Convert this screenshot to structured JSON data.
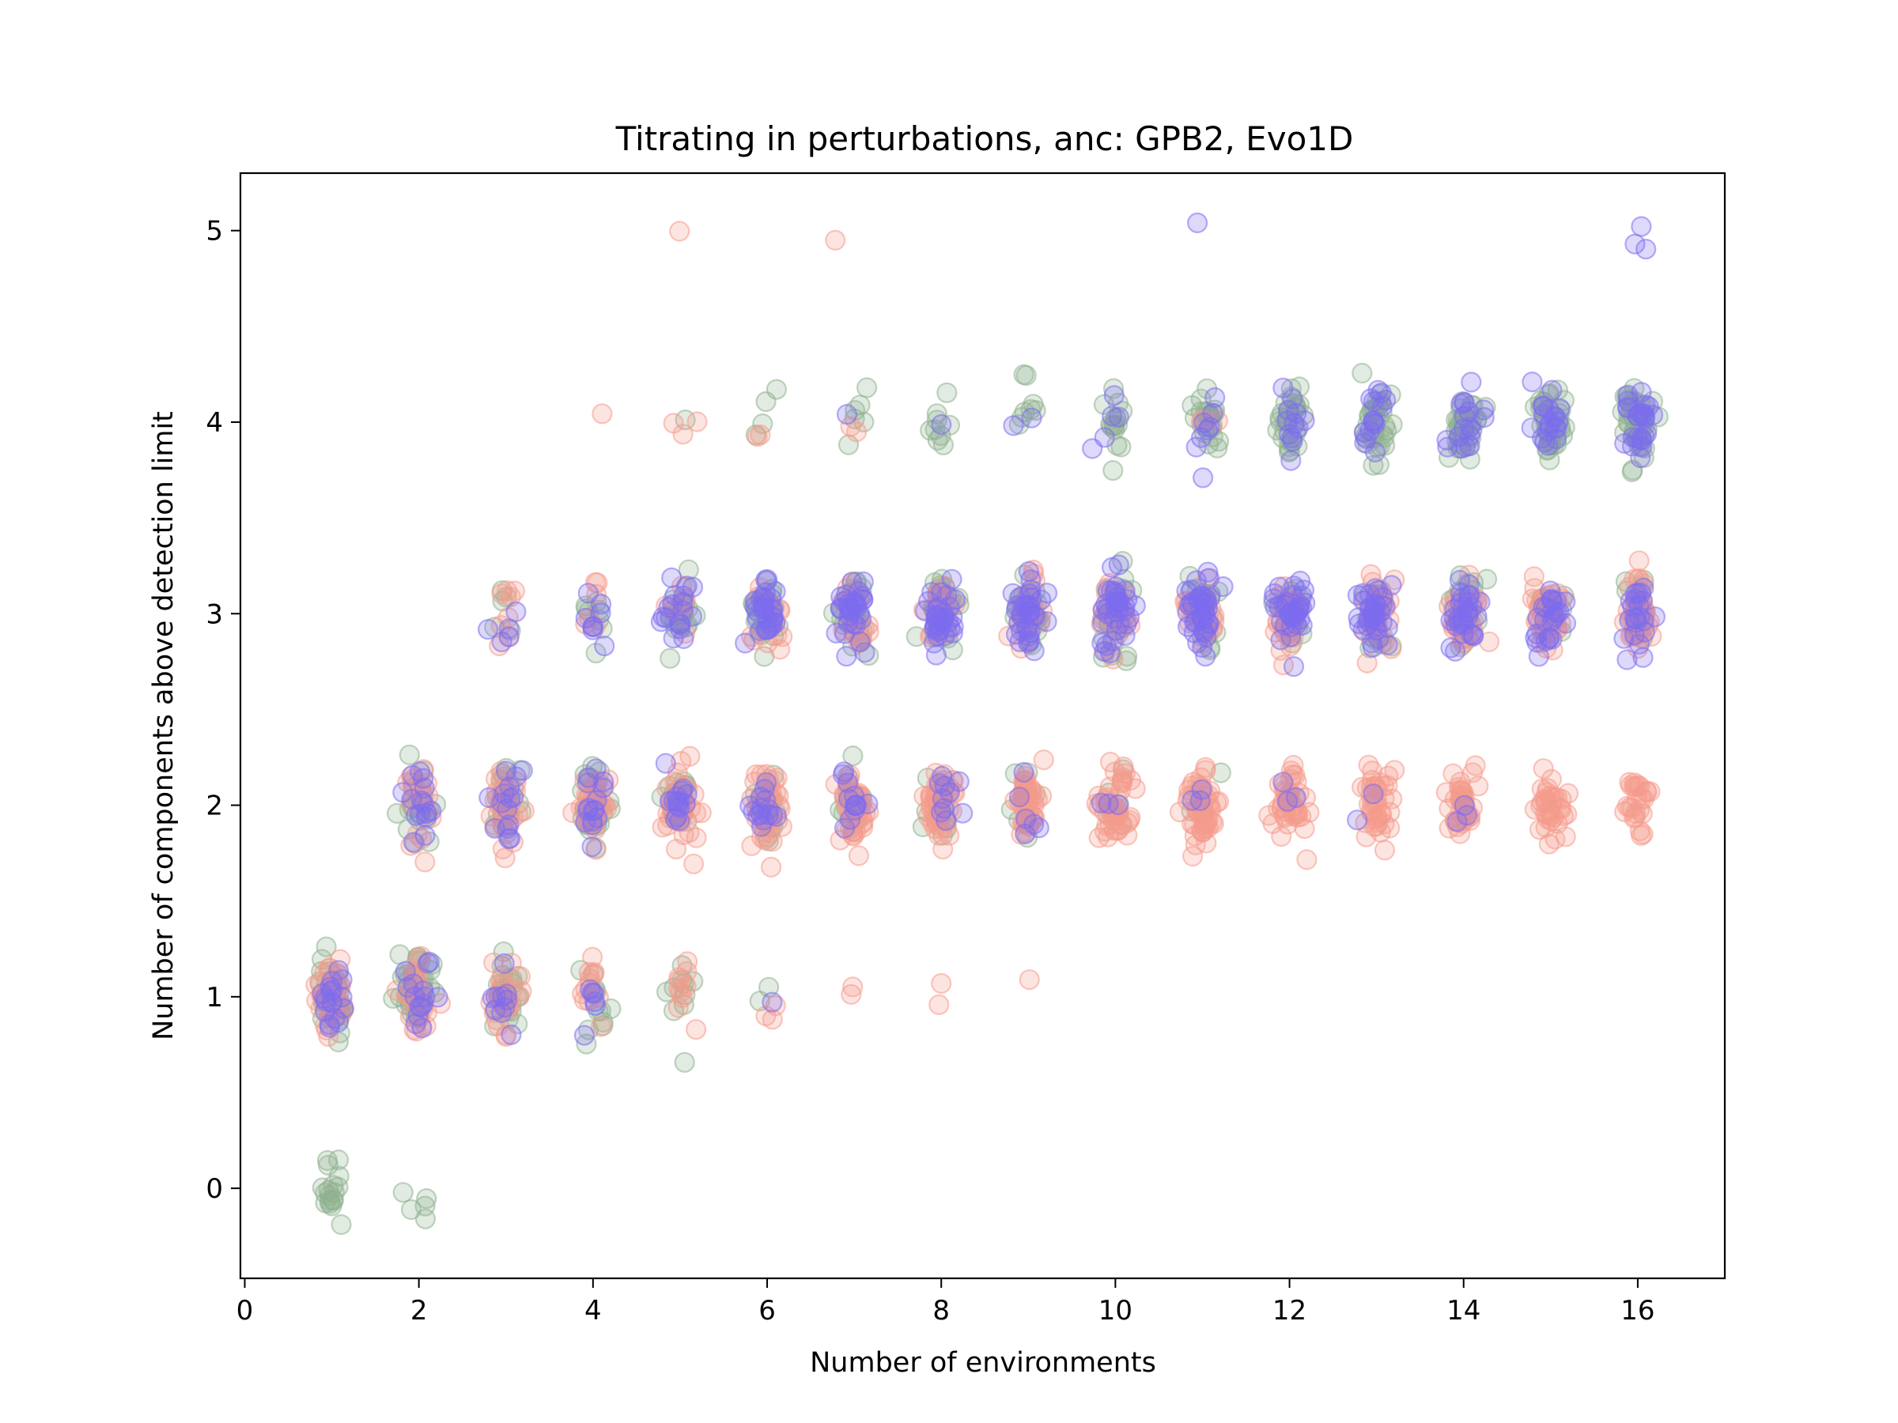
{
  "chart_data": {
    "type": "scatter",
    "title": "Titrating in perturbations, anc: GPB2, Evo1D",
    "xlabel": "Number of environments",
    "ylabel": "Number of components above detection limit",
    "xlim": [
      -0.05,
      17
    ],
    "ylim": [
      -0.47,
      5.3
    ],
    "xticks": [
      0,
      2,
      4,
      6,
      8,
      10,
      12,
      14,
      16
    ],
    "yticks": [
      0,
      1,
      2,
      3,
      4,
      5
    ],
    "grid": false,
    "legend": "none",
    "marker": "hollow circle, alpha ~0.3, horizontal/vertical jitter",
    "series": [
      {
        "color": "#8fb08f",
        "clusters": [
          {
            "x": 1,
            "y": 0,
            "n": 18
          },
          {
            "x": 2,
            "y": 0,
            "n": 5
          },
          {
            "x": 1,
            "y": 1,
            "n": 40
          },
          {
            "x": 2,
            "y": 1,
            "n": 40
          },
          {
            "x": 3,
            "y": 1,
            "n": 28
          },
          {
            "x": 4,
            "y": 1,
            "n": 12
          },
          {
            "x": 5,
            "y": 1,
            "n": 10
          },
          {
            "x": 6,
            "y": 1,
            "n": 2
          },
          {
            "x": 2,
            "y": 2,
            "n": 18
          },
          {
            "x": 3,
            "y": 2,
            "n": 25
          },
          {
            "x": 4,
            "y": 2,
            "n": 25
          },
          {
            "x": 5,
            "y": 2,
            "n": 22
          },
          {
            "x": 6,
            "y": 2,
            "n": 20
          },
          {
            "x": 7,
            "y": 2,
            "n": 15
          },
          {
            "x": 8,
            "y": 2,
            "n": 12
          },
          {
            "x": 9,
            "y": 2,
            "n": 10
          },
          {
            "x": 10,
            "y": 2,
            "n": 5
          },
          {
            "x": 11,
            "y": 2,
            "n": 3
          },
          {
            "x": 3,
            "y": 3,
            "n": 5
          },
          {
            "x": 4,
            "y": 3,
            "n": 8
          },
          {
            "x": 5,
            "y": 3,
            "n": 20
          },
          {
            "x": 6,
            "y": 3,
            "n": 30
          },
          {
            "x": 7,
            "y": 3,
            "n": 30
          },
          {
            "x": 8,
            "y": 3,
            "n": 30
          },
          {
            "x": 9,
            "y": 3,
            "n": 30
          },
          {
            "x": 10,
            "y": 3,
            "n": 28
          },
          {
            "x": 11,
            "y": 3,
            "n": 25
          },
          {
            "x": 12,
            "y": 3,
            "n": 22
          },
          {
            "x": 13,
            "y": 3,
            "n": 22
          },
          {
            "x": 14,
            "y": 3,
            "n": 20
          },
          {
            "x": 15,
            "y": 3,
            "n": 15
          },
          {
            "x": 16,
            "y": 3,
            "n": 15
          },
          {
            "x": 5,
            "y": 4,
            "n": 1
          },
          {
            "x": 6,
            "y": 4,
            "n": 4
          },
          {
            "x": 7,
            "y": 4,
            "n": 6
          },
          {
            "x": 8,
            "y": 4,
            "n": 9
          },
          {
            "x": 9,
            "y": 4,
            "n": 8
          },
          {
            "x": 10,
            "y": 4,
            "n": 15
          },
          {
            "x": 11,
            "y": 4,
            "n": 22
          },
          {
            "x": 12,
            "y": 4,
            "n": 30
          },
          {
            "x": 13,
            "y": 4,
            "n": 35
          },
          {
            "x": 14,
            "y": 4,
            "n": 38
          },
          {
            "x": 15,
            "y": 4,
            "n": 38
          },
          {
            "x": 16,
            "y": 4,
            "n": 45
          }
        ]
      },
      {
        "color": "#f59a8c",
        "clusters": [
          {
            "x": 1,
            "y": 1,
            "n": 35
          },
          {
            "x": 2,
            "y": 1,
            "n": 25
          },
          {
            "x": 3,
            "y": 1,
            "n": 25
          },
          {
            "x": 4,
            "y": 1,
            "n": 12
          },
          {
            "x": 5,
            "y": 1,
            "n": 10
          },
          {
            "x": 6,
            "y": 1,
            "n": 3
          },
          {
            "x": 7,
            "y": 1,
            "n": 2
          },
          {
            "x": 8,
            "y": 1,
            "n": 2
          },
          {
            "x": 9,
            "y": 1,
            "n": 1
          },
          {
            "x": 2,
            "y": 2,
            "n": 20
          },
          {
            "x": 3,
            "y": 2,
            "n": 30
          },
          {
            "x": 4,
            "y": 2,
            "n": 38
          },
          {
            "x": 5,
            "y": 2,
            "n": 45
          },
          {
            "x": 6,
            "y": 2,
            "n": 45
          },
          {
            "x": 7,
            "y": 2,
            "n": 45
          },
          {
            "x": 8,
            "y": 2,
            "n": 50
          },
          {
            "x": 9,
            "y": 2,
            "n": 45
          },
          {
            "x": 10,
            "y": 2,
            "n": 45
          },
          {
            "x": 11,
            "y": 2,
            "n": 50
          },
          {
            "x": 12,
            "y": 2,
            "n": 45
          },
          {
            "x": 13,
            "y": 2,
            "n": 40
          },
          {
            "x": 14,
            "y": 2,
            "n": 40
          },
          {
            "x": 15,
            "y": 2,
            "n": 35
          },
          {
            "x": 16,
            "y": 2,
            "n": 25
          },
          {
            "x": 3,
            "y": 3,
            "n": 8
          },
          {
            "x": 4,
            "y": 3,
            "n": 6
          },
          {
            "x": 5,
            "y": 3,
            "n": 8
          },
          {
            "x": 6,
            "y": 3,
            "n": 15
          },
          {
            "x": 7,
            "y": 3,
            "n": 18
          },
          {
            "x": 8,
            "y": 3,
            "n": 22
          },
          {
            "x": 9,
            "y": 3,
            "n": 20
          },
          {
            "x": 10,
            "y": 3,
            "n": 20
          },
          {
            "x": 11,
            "y": 3,
            "n": 25
          },
          {
            "x": 12,
            "y": 3,
            "n": 35
          },
          {
            "x": 13,
            "y": 3,
            "n": 35
          },
          {
            "x": 14,
            "y": 3,
            "n": 35
          },
          {
            "x": 15,
            "y": 3,
            "n": 40
          },
          {
            "x": 16,
            "y": 3,
            "n": 45
          },
          {
            "x": 4,
            "y": 4,
            "n": 1
          },
          {
            "x": 5,
            "y": 4,
            "n": 3
          },
          {
            "x": 6,
            "y": 4,
            "n": 2
          },
          {
            "x": 7,
            "y": 4,
            "n": 2
          },
          {
            "x": 11,
            "y": 4,
            "n": 3
          },
          {
            "x": 5,
            "y": 5,
            "n": 1
          },
          {
            "x": 7,
            "y": 5,
            "n": 1
          }
        ]
      },
      {
        "color": "#7b6cf0",
        "clusters": [
          {
            "x": 1,
            "y": 1,
            "n": 18
          },
          {
            "x": 2,
            "y": 1,
            "n": 15
          },
          {
            "x": 3,
            "y": 1,
            "n": 10
          },
          {
            "x": 4,
            "y": 1,
            "n": 6
          },
          {
            "x": 6,
            "y": 1,
            "n": 1
          },
          {
            "x": 2,
            "y": 2,
            "n": 15
          },
          {
            "x": 3,
            "y": 2,
            "n": 15
          },
          {
            "x": 4,
            "y": 2,
            "n": 15
          },
          {
            "x": 5,
            "y": 2,
            "n": 15
          },
          {
            "x": 6,
            "y": 2,
            "n": 15
          },
          {
            "x": 7,
            "y": 2,
            "n": 12
          },
          {
            "x": 8,
            "y": 2,
            "n": 10
          },
          {
            "x": 9,
            "y": 2,
            "n": 6
          },
          {
            "x": 10,
            "y": 2,
            "n": 3
          },
          {
            "x": 11,
            "y": 2,
            "n": 3
          },
          {
            "x": 12,
            "y": 2,
            "n": 3
          },
          {
            "x": 13,
            "y": 2,
            "n": 2
          },
          {
            "x": 14,
            "y": 2,
            "n": 3
          },
          {
            "x": 3,
            "y": 3,
            "n": 5
          },
          {
            "x": 4,
            "y": 3,
            "n": 8
          },
          {
            "x": 5,
            "y": 3,
            "n": 18
          },
          {
            "x": 6,
            "y": 3,
            "n": 30
          },
          {
            "x": 7,
            "y": 3,
            "n": 30
          },
          {
            "x": 8,
            "y": 3,
            "n": 35
          },
          {
            "x": 9,
            "y": 3,
            "n": 35
          },
          {
            "x": 10,
            "y": 3,
            "n": 35
          },
          {
            "x": 11,
            "y": 3,
            "n": 40
          },
          {
            "x": 12,
            "y": 3,
            "n": 35
          },
          {
            "x": 13,
            "y": 3,
            "n": 35
          },
          {
            "x": 14,
            "y": 3,
            "n": 30
          },
          {
            "x": 15,
            "y": 3,
            "n": 25
          },
          {
            "x": 16,
            "y": 3,
            "n": 22
          },
          {
            "x": 7,
            "y": 4,
            "n": 1
          },
          {
            "x": 8,
            "y": 4,
            "n": 1
          },
          {
            "x": 9,
            "y": 4,
            "n": 2
          },
          {
            "x": 10,
            "y": 4,
            "n": 5
          },
          {
            "x": 11,
            "y": 4,
            "n": 8
          },
          {
            "x": 12,
            "y": 4,
            "n": 12
          },
          {
            "x": 13,
            "y": 4,
            "n": 15
          },
          {
            "x": 14,
            "y": 4,
            "n": 18
          },
          {
            "x": 15,
            "y": 4,
            "n": 20
          },
          {
            "x": 16,
            "y": 4,
            "n": 25
          },
          {
            "x": 11,
            "y": 5,
            "n": 1
          },
          {
            "x": 16,
            "y": 5,
            "n": 3
          }
        ]
      }
    ]
  }
}
